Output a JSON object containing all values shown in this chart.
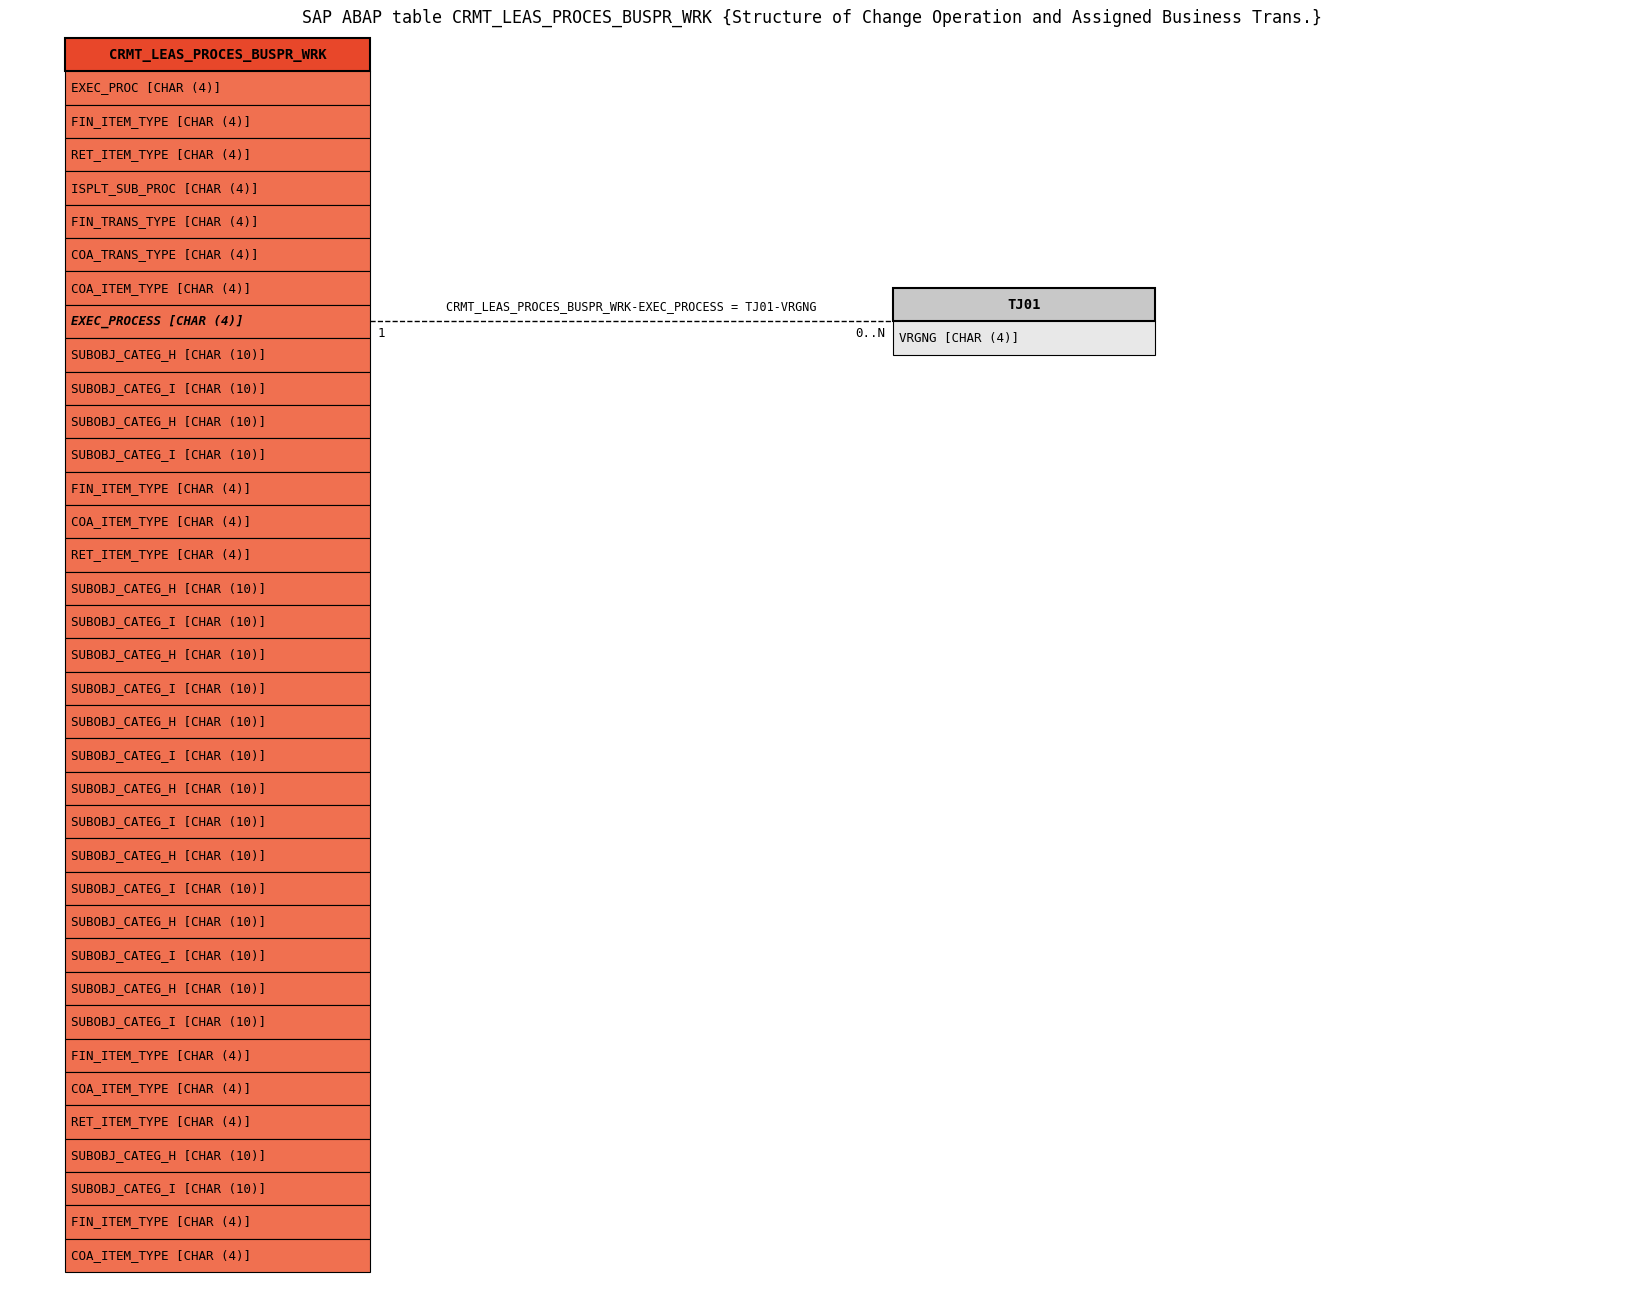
{
  "title": "SAP ABAP table CRMT_LEAS_PROCES_BUSPR_WRK {Structure of Change Operation and Assigned Business Trans.}",
  "main_table_header": "CRMT_LEAS_PROCES_BUSPR_WRK",
  "main_table_fields": [
    "EXEC_PROC [CHAR (4)]",
    "FIN_ITEM_TYPE [CHAR (4)]",
    "RET_ITEM_TYPE [CHAR (4)]",
    "ISPLT_SUB_PROC [CHAR (4)]",
    "FIN_TRANS_TYPE [CHAR (4)]",
    "COA_TRANS_TYPE [CHAR (4)]",
    "COA_ITEM_TYPE [CHAR (4)]",
    "EXEC_PROCESS [CHAR (4)]",
    "SUBOBJ_CATEG_H [CHAR (10)]",
    "SUBOBJ_CATEG_I [CHAR (10)]",
    "SUBOBJ_CATEG_H [CHAR (10)]",
    "SUBOBJ_CATEG_I [CHAR (10)]",
    "FIN_ITEM_TYPE [CHAR (4)]",
    "COA_ITEM_TYPE [CHAR (4)]",
    "RET_ITEM_TYPE [CHAR (4)]",
    "SUBOBJ_CATEG_H [CHAR (10)]",
    "SUBOBJ_CATEG_I [CHAR (10)]",
    "SUBOBJ_CATEG_H [CHAR (10)]",
    "SUBOBJ_CATEG_I [CHAR (10)]",
    "SUBOBJ_CATEG_H [CHAR (10)]",
    "SUBOBJ_CATEG_I [CHAR (10)]",
    "SUBOBJ_CATEG_H [CHAR (10)]",
    "SUBOBJ_CATEG_I [CHAR (10)]",
    "SUBOBJ_CATEG_H [CHAR (10)]",
    "SUBOBJ_CATEG_I [CHAR (10)]",
    "SUBOBJ_CATEG_H [CHAR (10)]",
    "SUBOBJ_CATEG_I [CHAR (10)]",
    "SUBOBJ_CATEG_H [CHAR (10)]",
    "SUBOBJ_CATEG_I [CHAR (10)]",
    "FIN_ITEM_TYPE [CHAR (4)]",
    "COA_ITEM_TYPE [CHAR (4)]",
    "RET_ITEM_TYPE [CHAR (4)]",
    "SUBOBJ_CATEG_H [CHAR (10)]",
    "SUBOBJ_CATEG_I [CHAR (10)]",
    "FIN_ITEM_TYPE [CHAR (4)]",
    "COA_ITEM_TYPE [CHAR (4)]"
  ],
  "exec_process_row_index": 7,
  "related_table_header": "TJ01",
  "related_table_fields": [
    "VRGNG [CHAR (4)]"
  ],
  "relation_label": "CRMT_LEAS_PROCES_BUSPR_WRK-EXEC_PROCESS = TJ01-VRGNG",
  "relation_left": "1",
  "relation_right": "0..N",
  "header_bg_color": "#e8472a",
  "header_text_color": "#000000",
  "field_bg_color": "#f07050",
  "field_text_color": "#000000",
  "related_header_bg_color": "#c8c8c8",
  "related_header_text_color": "#000000",
  "related_field_bg_color": "#e8e8e8",
  "related_field_text_color": "#000000",
  "border_color": "#000000",
  "title_fontsize": 12,
  "field_fontsize": 9,
  "header_fontsize": 10,
  "related_field_fontsize": 9,
  "related_header_fontsize": 10
}
